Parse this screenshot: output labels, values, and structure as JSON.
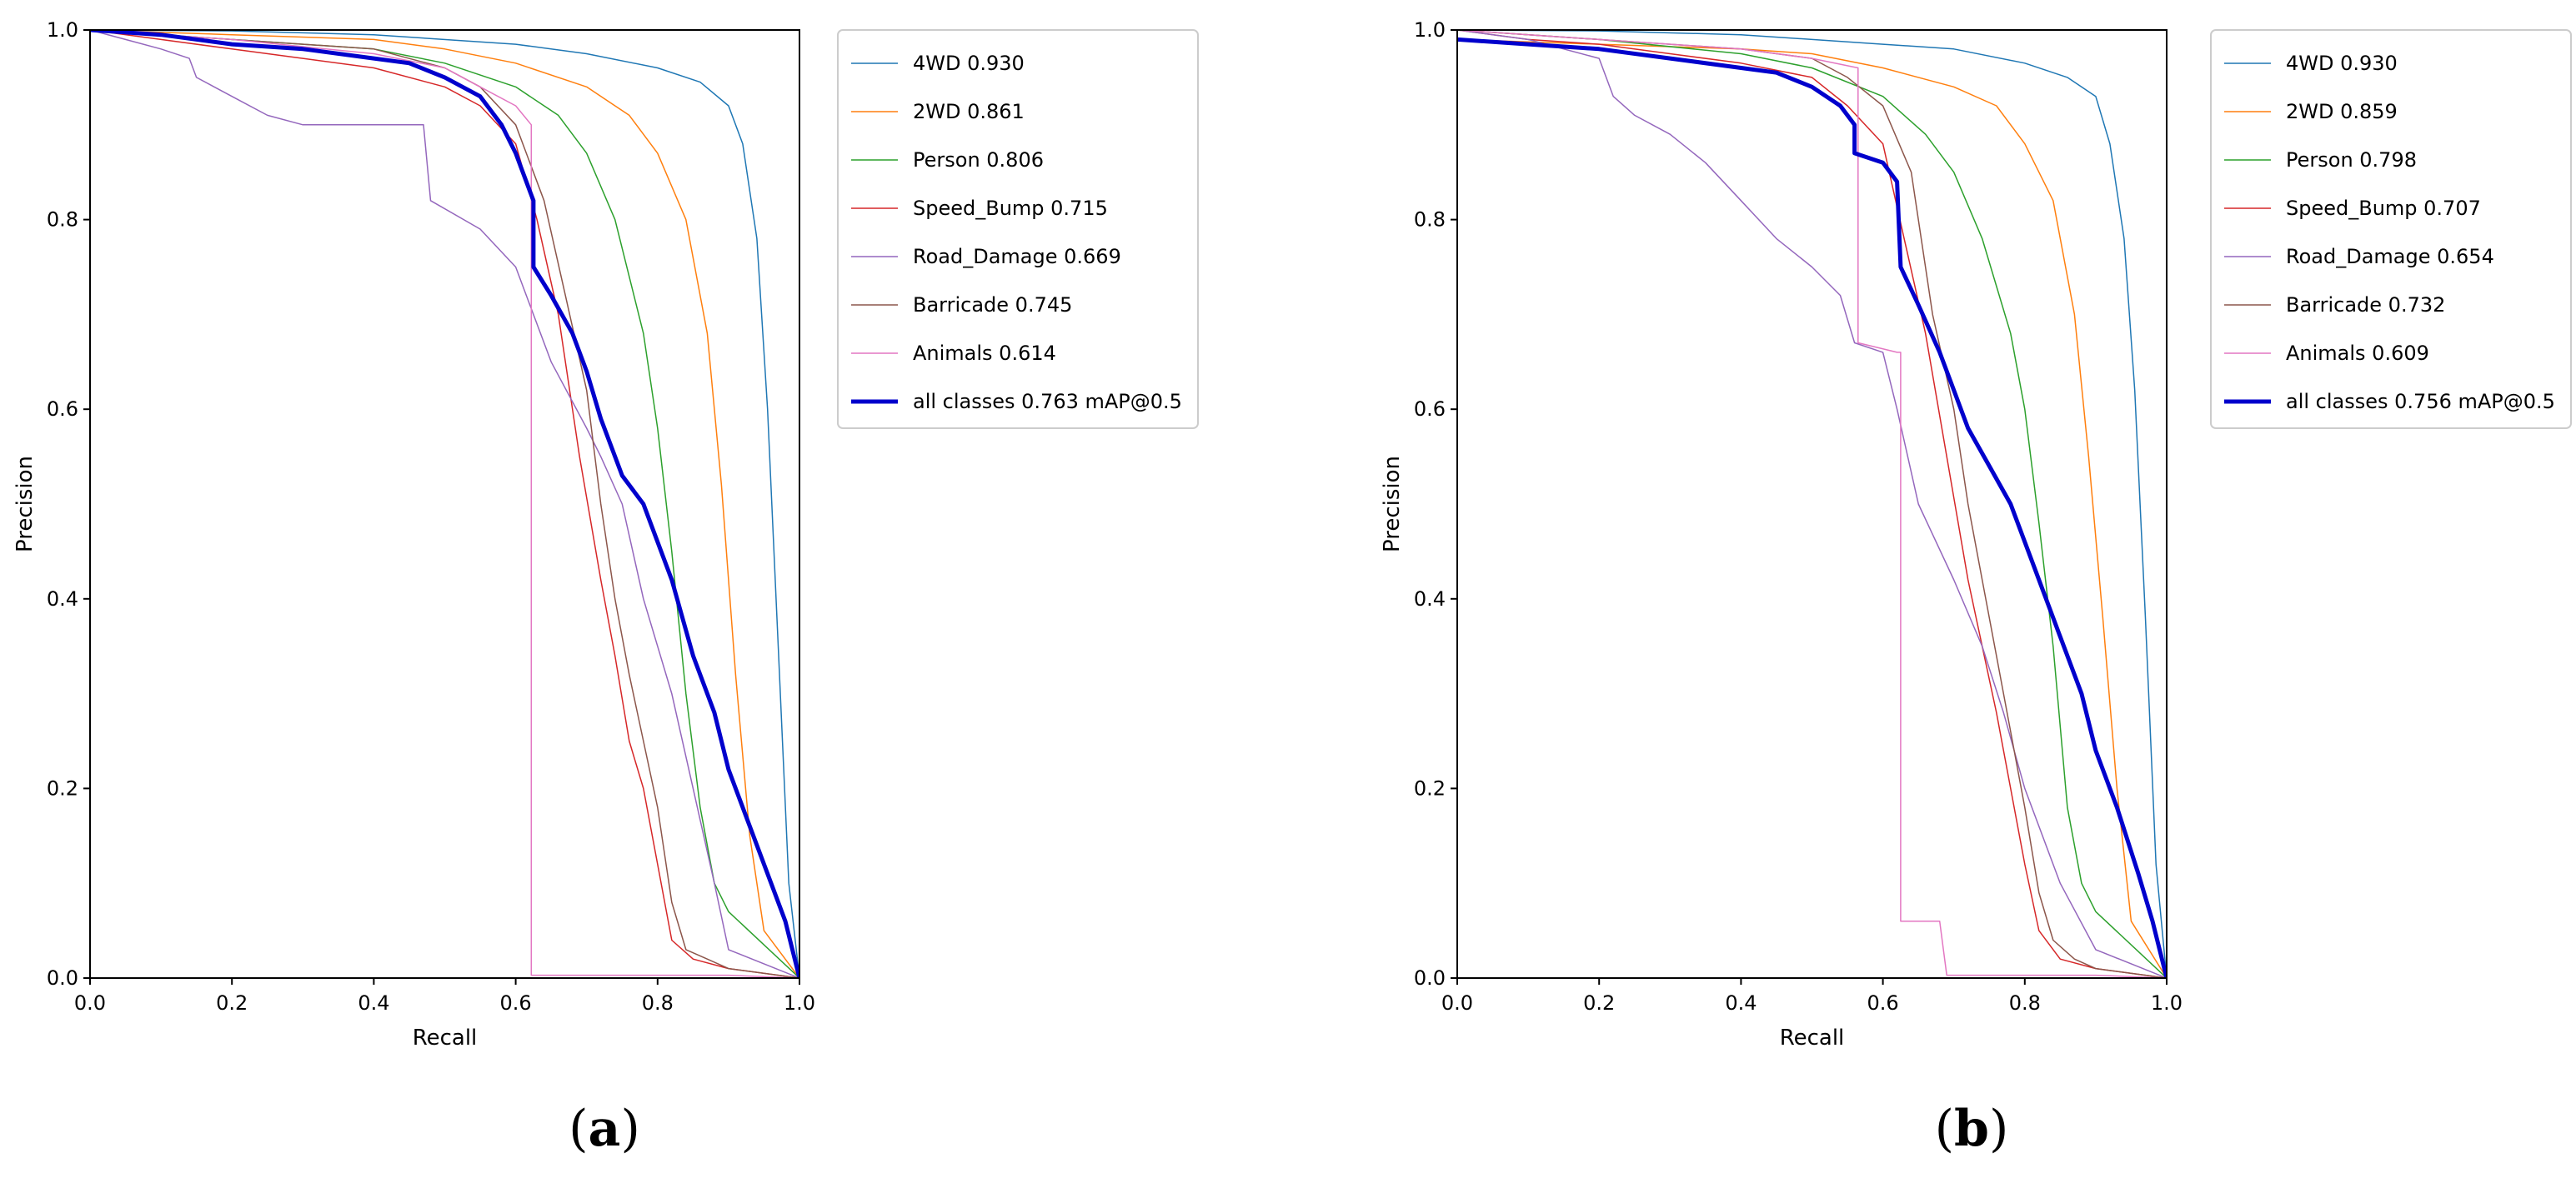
{
  "figure": {
    "panel_labels": [
      {
        "open": "(",
        "letter": "a",
        "close": ")"
      },
      {
        "open": "(",
        "letter": "b",
        "close": ")"
      }
    ]
  },
  "chart_data": [
    {
      "type": "line",
      "title": "",
      "xlabel": "Recall",
      "ylabel": "Precision",
      "xlim": [
        0,
        1
      ],
      "ylim": [
        0,
        1
      ],
      "xticks": [
        "0.0",
        "0.2",
        "0.4",
        "0.6",
        "0.8",
        "1.0"
      ],
      "yticks": [
        "0.0",
        "0.2",
        "0.4",
        "0.6",
        "0.8",
        "1.0"
      ],
      "legend_position": "outside-right",
      "series": [
        {
          "name": "4WD 0.930",
          "color": "#1f77b4",
          "width": 1.5,
          "x": [
            0,
            0.2,
            0.4,
            0.6,
            0.7,
            0.8,
            0.86,
            0.9,
            0.92,
            0.94,
            0.955,
            0.97,
            0.985,
            1.0
          ],
          "y": [
            1,
            0.999,
            0.995,
            0.985,
            0.975,
            0.96,
            0.945,
            0.92,
            0.88,
            0.78,
            0.6,
            0.35,
            0.1,
            0
          ]
        },
        {
          "name": "2WD 0.861",
          "color": "#ff7f0e",
          "width": 1.5,
          "x": [
            0,
            0.2,
            0.4,
            0.5,
            0.6,
            0.7,
            0.76,
            0.8,
            0.84,
            0.87,
            0.89,
            0.91,
            0.93,
            0.95,
            1.0
          ],
          "y": [
            1,
            0.995,
            0.99,
            0.98,
            0.965,
            0.94,
            0.91,
            0.87,
            0.8,
            0.68,
            0.52,
            0.32,
            0.15,
            0.05,
            0
          ]
        },
        {
          "name": "Person 0.806",
          "color": "#2ca02c",
          "width": 1.5,
          "x": [
            0,
            0.2,
            0.4,
            0.5,
            0.6,
            0.66,
            0.7,
            0.74,
            0.78,
            0.8,
            0.82,
            0.84,
            0.86,
            0.88,
            0.9,
            1.0
          ],
          "y": [
            1,
            0.99,
            0.98,
            0.965,
            0.94,
            0.91,
            0.87,
            0.8,
            0.68,
            0.58,
            0.45,
            0.3,
            0.18,
            0.1,
            0.07,
            0
          ]
        },
        {
          "name": "Speed_Bump 0.715",
          "color": "#d62728",
          "width": 1.5,
          "x": [
            0,
            0.1,
            0.2,
            0.3,
            0.4,
            0.5,
            0.55,
            0.6,
            0.63,
            0.66,
            0.69,
            0.72,
            0.74,
            0.76,
            0.78,
            0.8,
            0.82,
            0.85,
            0.9,
            1.0
          ],
          "y": [
            1,
            0.99,
            0.98,
            0.97,
            0.96,
            0.94,
            0.92,
            0.88,
            0.8,
            0.7,
            0.55,
            0.42,
            0.34,
            0.25,
            0.2,
            0.12,
            0.04,
            0.02,
            0.01,
            0
          ]
        },
        {
          "name": "Road_Damage 0.669",
          "color": "#9467bd",
          "width": 1.5,
          "x": [
            0,
            0.05,
            0.1,
            0.14,
            0.15,
            0.2,
            0.25,
            0.3,
            0.4,
            0.47,
            0.48,
            0.55,
            0.6,
            0.65,
            0.7,
            0.72,
            0.75,
            0.78,
            0.8,
            0.82,
            0.85,
            0.88,
            0.9,
            1.0
          ],
          "y": [
            1,
            0.99,
            0.98,
            0.97,
            0.95,
            0.93,
            0.91,
            0.9,
            0.9,
            0.9,
            0.82,
            0.79,
            0.75,
            0.65,
            0.58,
            0.55,
            0.5,
            0.4,
            0.35,
            0.3,
            0.2,
            0.1,
            0.03,
            0
          ]
        },
        {
          "name": "Barricade 0.745",
          "color": "#8c564b",
          "width": 1.5,
          "x": [
            0,
            0.2,
            0.4,
            0.5,
            0.55,
            0.6,
            0.64,
            0.67,
            0.7,
            0.72,
            0.74,
            0.76,
            0.78,
            0.8,
            0.82,
            0.84,
            0.87,
            0.9,
            1.0
          ],
          "y": [
            1,
            0.99,
            0.98,
            0.96,
            0.94,
            0.9,
            0.82,
            0.72,
            0.62,
            0.5,
            0.4,
            0.32,
            0.25,
            0.18,
            0.08,
            0.03,
            0.02,
            0.01,
            0
          ]
        },
        {
          "name": "Animals 0.614",
          "color": "#e377c2",
          "width": 1.5,
          "x": [
            0,
            0.2,
            0.4,
            0.5,
            0.55,
            0.6,
            0.622,
            0.622,
            0.7,
            0.8,
            0.9,
            1.0
          ],
          "y": [
            1,
            0.99,
            0.975,
            0.96,
            0.94,
            0.92,
            0.9,
            0.003,
            0.003,
            0.003,
            0.003,
            0
          ]
        },
        {
          "name": "all classes 0.763 mAP@0.5",
          "color": "#0000cc",
          "width": 5,
          "x": [
            0,
            0.1,
            0.2,
            0.3,
            0.4,
            0.45,
            0.5,
            0.55,
            0.58,
            0.6,
            0.62,
            0.625,
            0.625,
            0.65,
            0.68,
            0.7,
            0.72,
            0.75,
            0.78,
            0.8,
            0.82,
            0.85,
            0.88,
            0.9,
            0.93,
            0.96,
            0.98,
            1.0
          ],
          "y": [
            1,
            0.995,
            0.985,
            0.98,
            0.97,
            0.965,
            0.95,
            0.93,
            0.9,
            0.87,
            0.83,
            0.82,
            0.75,
            0.72,
            0.68,
            0.64,
            0.59,
            0.53,
            0.5,
            0.46,
            0.42,
            0.34,
            0.28,
            0.22,
            0.16,
            0.1,
            0.06,
            0
          ]
        }
      ]
    },
    {
      "type": "line",
      "title": "",
      "xlabel": "Recall",
      "ylabel": "Precision",
      "xlim": [
        0,
        1
      ],
      "ylim": [
        0,
        1
      ],
      "xticks": [
        "0.0",
        "0.2",
        "0.4",
        "0.6",
        "0.8",
        "1.0"
      ],
      "yticks": [
        "0.0",
        "0.2",
        "0.4",
        "0.6",
        "0.8",
        "1.0"
      ],
      "legend_position": "outside-right",
      "series": [
        {
          "name": "4WD 0.930",
          "color": "#1f77b4",
          "width": 1.5,
          "x": [
            0,
            0.2,
            0.4,
            0.6,
            0.7,
            0.8,
            0.86,
            0.9,
            0.92,
            0.94,
            0.955,
            0.97,
            0.985,
            1.0
          ],
          "y": [
            1,
            0.999,
            0.995,
            0.985,
            0.98,
            0.965,
            0.95,
            0.93,
            0.88,
            0.78,
            0.62,
            0.38,
            0.12,
            0
          ]
        },
        {
          "name": "2WD 0.859",
          "color": "#ff7f0e",
          "width": 1.5,
          "x": [
            0,
            0.2,
            0.4,
            0.5,
            0.6,
            0.7,
            0.76,
            0.8,
            0.84,
            0.87,
            0.89,
            0.91,
            0.93,
            0.95,
            1.0
          ],
          "y": [
            0.99,
            0.985,
            0.98,
            0.975,
            0.96,
            0.94,
            0.92,
            0.88,
            0.82,
            0.7,
            0.55,
            0.38,
            0.2,
            0.06,
            0
          ]
        },
        {
          "name": "Person 0.798",
          "color": "#2ca02c",
          "width": 1.5,
          "x": [
            0,
            0.2,
            0.4,
            0.5,
            0.6,
            0.66,
            0.7,
            0.74,
            0.78,
            0.8,
            0.82,
            0.84,
            0.86,
            0.88,
            0.9,
            1.0
          ],
          "y": [
            1,
            0.99,
            0.975,
            0.96,
            0.93,
            0.89,
            0.85,
            0.78,
            0.68,
            0.6,
            0.48,
            0.35,
            0.18,
            0.1,
            0.07,
            0
          ]
        },
        {
          "name": "Speed_Bump 0.707",
          "color": "#d62728",
          "width": 1.5,
          "x": [
            0,
            0.1,
            0.2,
            0.3,
            0.4,
            0.5,
            0.55,
            0.6,
            0.63,
            0.66,
            0.69,
            0.72,
            0.74,
            0.76,
            0.78,
            0.8,
            0.82,
            0.85,
            0.9,
            1.0
          ],
          "y": [
            1,
            0.99,
            0.985,
            0.975,
            0.965,
            0.95,
            0.92,
            0.88,
            0.78,
            0.68,
            0.55,
            0.42,
            0.35,
            0.28,
            0.2,
            0.12,
            0.05,
            0.02,
            0.01,
            0
          ]
        },
        {
          "name": "Road_Damage 0.654",
          "color": "#9467bd",
          "width": 1.5,
          "x": [
            0,
            0.1,
            0.2,
            0.22,
            0.25,
            0.3,
            0.35,
            0.4,
            0.45,
            0.5,
            0.54,
            0.56,
            0.6,
            0.62,
            0.65,
            0.7,
            0.74,
            0.77,
            0.8,
            0.85,
            0.9,
            1.0
          ],
          "y": [
            1,
            0.99,
            0.97,
            0.93,
            0.91,
            0.89,
            0.86,
            0.82,
            0.78,
            0.75,
            0.72,
            0.67,
            0.66,
            0.6,
            0.5,
            0.42,
            0.35,
            0.28,
            0.2,
            0.1,
            0.03,
            0
          ]
        },
        {
          "name": "Barricade 0.732",
          "color": "#8c564b",
          "width": 1.5,
          "x": [
            0,
            0.2,
            0.4,
            0.5,
            0.55,
            0.6,
            0.64,
            0.67,
            0.7,
            0.72,
            0.74,
            0.76,
            0.78,
            0.8,
            0.82,
            0.84,
            0.87,
            0.9,
            1.0
          ],
          "y": [
            1,
            0.99,
            0.98,
            0.97,
            0.95,
            0.92,
            0.85,
            0.7,
            0.6,
            0.5,
            0.42,
            0.34,
            0.26,
            0.18,
            0.09,
            0.04,
            0.02,
            0.01,
            0
          ]
        },
        {
          "name": "Animals 0.609",
          "color": "#e377c2",
          "width": 1.5,
          "x": [
            0,
            0.2,
            0.4,
            0.5,
            0.565,
            0.565,
            0.62,
            0.625,
            0.625,
            0.68,
            0.69,
            0.8,
            0.9,
            1.0
          ],
          "y": [
            1,
            0.99,
            0.98,
            0.97,
            0.96,
            0.67,
            0.66,
            0.66,
            0.06,
            0.06,
            0.003,
            0.003,
            0.003,
            0
          ]
        },
        {
          "name": "all classes 0.756 mAP@0.5",
          "color": "#0000cc",
          "width": 5,
          "x": [
            0,
            0.1,
            0.2,
            0.3,
            0.4,
            0.45,
            0.5,
            0.54,
            0.56,
            0.56,
            0.6,
            0.62,
            0.625,
            0.65,
            0.68,
            0.7,
            0.72,
            0.75,
            0.78,
            0.8,
            0.82,
            0.85,
            0.88,
            0.9,
            0.93,
            0.96,
            0.98,
            1.0
          ],
          "y": [
            0.99,
            0.985,
            0.98,
            0.97,
            0.96,
            0.955,
            0.94,
            0.92,
            0.9,
            0.87,
            0.86,
            0.84,
            0.75,
            0.71,
            0.66,
            0.62,
            0.58,
            0.54,
            0.5,
            0.46,
            0.42,
            0.36,
            0.3,
            0.24,
            0.18,
            0.11,
            0.06,
            0
          ]
        }
      ]
    }
  ]
}
